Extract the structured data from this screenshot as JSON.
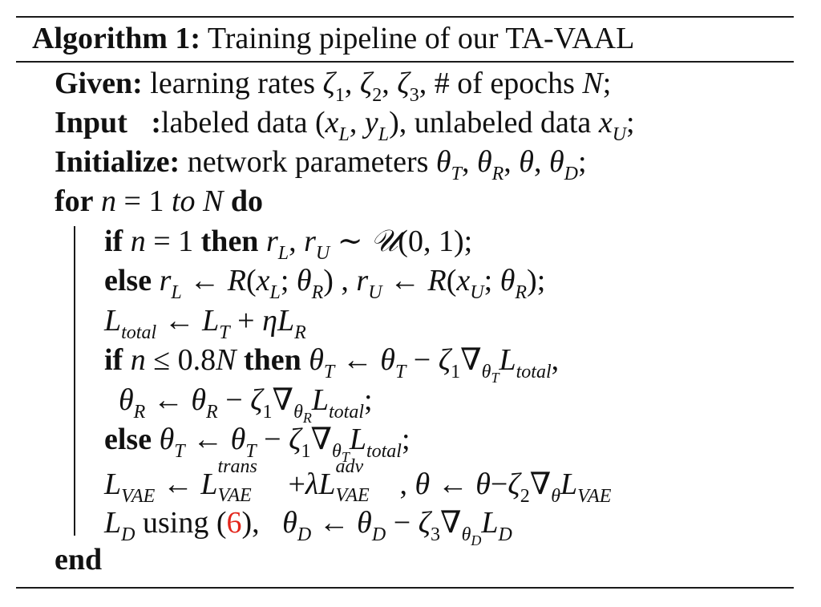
{
  "algorithm": {
    "label": "Algorithm 1:",
    "title": "Training pipeline of our TA-VAAL"
  },
  "given": {
    "keyword": "Given:",
    "text": "learning rates",
    "z1": "ζ",
    "s1": "1",
    "z2": "ζ",
    "s2": "2",
    "z3": "ζ",
    "s3": "3",
    "epochs": "# of epochs",
    "N": "N"
  },
  "input": {
    "keyword": "Input",
    "colon": ":",
    "labeled": "labeled data",
    "unlabeled": "unlabeled data"
  },
  "initialize": {
    "keyword": "Initialize:",
    "text": "network parameters"
  },
  "loop": {
    "for_kw": "for",
    "to_kw": "to",
    "do_kw": "do",
    "end_kw": "end"
  },
  "keywords": {
    "if": "if",
    "then": "then",
    "else": "else",
    "using": "using"
  },
  "math": {
    "total": "total",
    "trans": "trans",
    "adv": "adv",
    "vae": "VAE",
    "ref_eq": "6",
    "threshold": "0.8"
  }
}
